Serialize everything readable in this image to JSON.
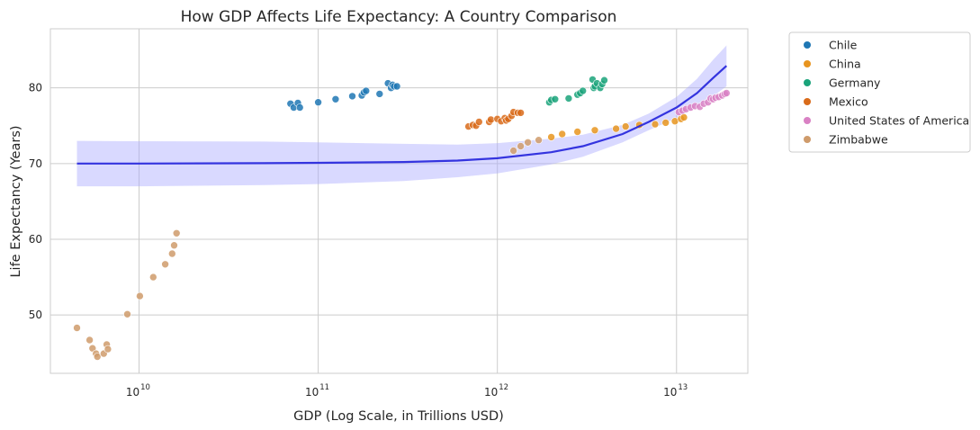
{
  "chart_data": {
    "type": "scatter",
    "title": "How GDP Affects Life Expectancy: A Country Comparison",
    "xlabel": "GDP (Log Scale, in Trillions USD)",
    "ylabel": "Life Expectancy (Years)",
    "x_scale": "log",
    "xlim": [
      3200000000.0,
      25000000000000.0
    ],
    "ylim": [
      42.3,
      87.8
    ],
    "x_ticks": [
      {
        "value": 10000000000.0,
        "base": "10",
        "exp": "10"
      },
      {
        "value": 100000000000.0,
        "base": "10",
        "exp": "11"
      },
      {
        "value": 1000000000000.0,
        "base": "10",
        "exp": "12"
      },
      {
        "value": 10000000000000.0,
        "base": "10",
        "exp": "13"
      }
    ],
    "y_ticks": [
      {
        "value": 50,
        "label": "50"
      },
      {
        "value": 60,
        "label": "60"
      },
      {
        "value": 70,
        "label": "70"
      },
      {
        "value": 80,
        "label": "80"
      }
    ],
    "grid": true,
    "legend_position": "outside-top-right",
    "series": [
      {
        "name": "Chile",
        "color": "#1f77b4",
        "points": [
          [
            70000000000.0,
            77.9
          ],
          [
            73000000000.0,
            77.4
          ],
          [
            77000000000.0,
            78.0
          ],
          [
            79000000000.0,
            77.4
          ],
          [
            100000000000.0,
            78.1
          ],
          [
            125000000000.0,
            78.5
          ],
          [
            155000000000.0,
            78.9
          ],
          [
            175000000000.0,
            79.0
          ],
          [
            180000000000.0,
            79.4
          ],
          [
            185000000000.0,
            79.6
          ],
          [
            220000000000.0,
            79.2
          ],
          [
            245000000000.0,
            80.6
          ],
          [
            255000000000.0,
            80.0
          ],
          [
            260000000000.0,
            80.4
          ],
          [
            265000000000.0,
            80.2
          ],
          [
            275000000000.0,
            80.2
          ]
        ]
      },
      {
        "name": "China",
        "color": "#e8951f",
        "points": [
          [
            2000000000000.0,
            73.5
          ],
          [
            2300000000000.0,
            73.9
          ],
          [
            2800000000000.0,
            74.2
          ],
          [
            3500000000000.0,
            74.4
          ],
          [
            4600000000000.0,
            74.6
          ],
          [
            5200000000000.0,
            74.9
          ],
          [
            6200000000000.0,
            75.1
          ],
          [
            7600000000000.0,
            75.2
          ],
          [
            8700000000000.0,
            75.4
          ],
          [
            9800000000000.0,
            75.6
          ],
          [
            10600000000000.0,
            75.9
          ],
          [
            11000000000000.0,
            76.1
          ]
        ]
      },
      {
        "name": "Germany",
        "color": "#1aa37a",
        "points": [
          [
            1950000000000.0,
            78.1
          ],
          [
            2000000000000.0,
            78.4
          ],
          [
            2100000000000.0,
            78.5
          ],
          [
            2500000000000.0,
            78.6
          ],
          [
            2800000000000.0,
            79.1
          ],
          [
            2900000000000.0,
            79.3
          ],
          [
            3000000000000.0,
            79.6
          ],
          [
            3400000000000.0,
            81.1
          ],
          [
            3450000000000.0,
            80.0
          ],
          [
            3500000000000.0,
            80.2
          ],
          [
            3600000000000.0,
            80.6
          ],
          [
            3750000000000.0,
            80.0
          ],
          [
            3850000000000.0,
            80.5
          ],
          [
            3950000000000.0,
            81.0
          ]
        ]
      },
      {
        "name": "Mexico",
        "color": "#d96b1a",
        "points": [
          [
            690000000000.0,
            74.9
          ],
          [
            730000000000.0,
            75.1
          ],
          [
            760000000000.0,
            75.0
          ],
          [
            790000000000.0,
            75.5
          ],
          [
            900000000000.0,
            75.5
          ],
          [
            920000000000.0,
            75.8
          ],
          [
            1000000000000.0,
            75.9
          ],
          [
            1050000000000.0,
            75.6
          ],
          [
            1100000000000.0,
            76.0
          ],
          [
            1120000000000.0,
            75.7
          ],
          [
            1150000000000.0,
            75.9
          ],
          [
            1200000000000.0,
            76.3
          ],
          [
            1230000000000.0,
            76.8
          ],
          [
            1300000000000.0,
            76.7
          ],
          [
            1350000000000.0,
            76.7
          ]
        ]
      },
      {
        "name": "United States of America",
        "color": "#d981c4",
        "points": [
          [
            10300000000000.0,
            76.8
          ],
          [
            10800000000000.0,
            77.0
          ],
          [
            11300000000000.0,
            77.2
          ],
          [
            12000000000000.0,
            77.4
          ],
          [
            12700000000000.0,
            77.6
          ],
          [
            13500000000000.0,
            77.5
          ],
          [
            14200000000000.0,
            77.9
          ],
          [
            15000000000000.0,
            78.1
          ],
          [
            15500000000000.0,
            78.6
          ],
          [
            16000000000000.0,
            78.5
          ],
          [
            16500000000000.0,
            78.7
          ],
          [
            17200000000000.0,
            78.8
          ],
          [
            18000000000000.0,
            79.0
          ],
          [
            18600000000000.0,
            79.2
          ],
          [
            19000000000000.0,
            79.3
          ]
        ]
      },
      {
        "name": "Zimbabwe",
        "color": "#cf9b6b",
        "points": [
          [
            4500000000.0,
            48.3
          ],
          [
            5300000000.0,
            46.7
          ],
          [
            5500000000.0,
            45.6
          ],
          [
            5750000000.0,
            44.9
          ],
          [
            5850000000.0,
            44.5
          ],
          [
            6350000000.0,
            44.9
          ],
          [
            6600000000.0,
            46.1
          ],
          [
            6700000000.0,
            45.5
          ],
          [
            8600000000.0,
            50.1
          ],
          [
            10100000000.0,
            52.5
          ],
          [
            12000000000.0,
            55.0
          ],
          [
            14000000000.0,
            56.7
          ],
          [
            15300000000.0,
            58.1
          ],
          [
            15700000000.0,
            59.2
          ],
          [
            16200000000.0,
            60.8
          ],
          [
            1230000000000.0,
            71.7
          ],
          [
            1350000000000.0,
            72.3
          ],
          [
            1480000000000.0,
            72.8
          ],
          [
            1700000000000.0,
            73.1
          ]
        ]
      }
    ],
    "trend": {
      "color": "#2b2bdd",
      "band_color": "#aaaaff",
      "points": [
        [
          4500000000.0,
          70.0
        ],
        [
          10000000000.0,
          70.0
        ],
        [
          50000000000.0,
          70.05
        ],
        [
          100000000000.0,
          70.1
        ],
        [
          300000000000.0,
          70.2
        ],
        [
          600000000000.0,
          70.4
        ],
        [
          1000000000000.0,
          70.7
        ],
        [
          2000000000000.0,
          71.5
        ],
        [
          3000000000000.0,
          72.3
        ],
        [
          5000000000000.0,
          73.9
        ],
        [
          7000000000000.0,
          75.5
        ],
        [
          10000000000000.0,
          77.4
        ],
        [
          13000000000000.0,
          79.3
        ],
        [
          16000000000000.0,
          81.3
        ],
        [
          19000000000000.0,
          82.9
        ]
      ],
      "band_lower": [
        [
          4500000000.0,
          67.0
        ],
        [
          10000000000.0,
          67.0
        ],
        [
          50000000000.0,
          67.15
        ],
        [
          100000000000.0,
          67.3
        ],
        [
          300000000000.0,
          67.7
        ],
        [
          600000000000.0,
          68.2
        ],
        [
          1000000000000.0,
          68.7
        ],
        [
          2000000000000.0,
          69.9
        ],
        [
          3000000000000.0,
          70.9
        ],
        [
          5000000000000.0,
          72.8
        ],
        [
          7000000000000.0,
          74.4
        ],
        [
          10000000000000.0,
          76.0
        ],
        [
          13000000000000.0,
          77.4
        ],
        [
          16000000000000.0,
          78.9
        ],
        [
          19000000000000.0,
          80.2
        ]
      ],
      "band_upper": [
        [
          4500000000.0,
          73.0
        ],
        [
          10000000000.0,
          72.95
        ],
        [
          50000000000.0,
          72.9
        ],
        [
          100000000000.0,
          72.8
        ],
        [
          300000000000.0,
          72.6
        ],
        [
          600000000000.0,
          72.5
        ],
        [
          1000000000000.0,
          72.7
        ],
        [
          2000000000000.0,
          73.3
        ],
        [
          3000000000000.0,
          73.8
        ],
        [
          5000000000000.0,
          75.1
        ],
        [
          7000000000000.0,
          76.6
        ],
        [
          10000000000000.0,
          78.8
        ],
        [
          13000000000000.0,
          81.2
        ],
        [
          16000000000000.0,
          83.7
        ],
        [
          19000000000000.0,
          85.6
        ]
      ]
    }
  }
}
